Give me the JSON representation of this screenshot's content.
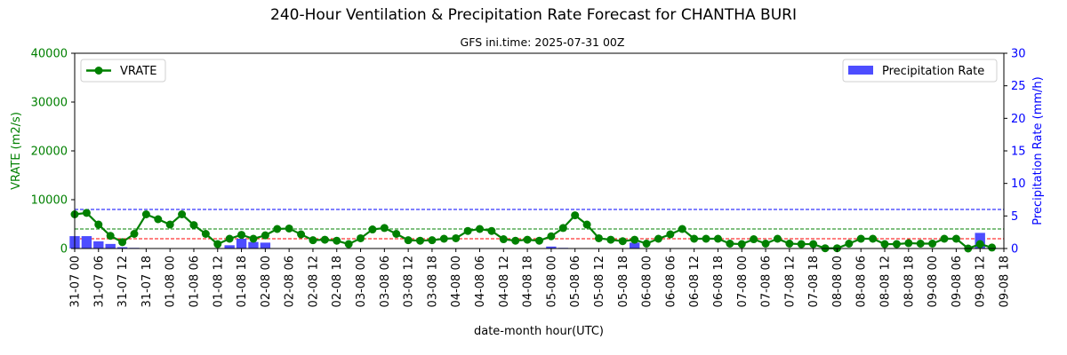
{
  "chart_data": {
    "type": "line",
    "title": "240-Hour Ventilation & Precipitation Rate Forecast for CHANTHA BURI",
    "subtitle": "GFS ini.time: 2025-07-31 00Z",
    "xlabel": "date-month hour(UTC)",
    "ylabel_left": "VRATE (m2/s)",
    "ylabel_right": "Precipitation Rate (mm/h)",
    "ylim_left": [
      0,
      40000
    ],
    "ylim_right": [
      0,
      30
    ],
    "yticks_left": [
      "0",
      "10000",
      "20000",
      "30000",
      "40000"
    ],
    "yticks_right": [
      "0",
      "5",
      "10",
      "15",
      "20",
      "25",
      "30"
    ],
    "grid": false,
    "legend_left": {
      "label": "VRATE",
      "position": "upper left"
    },
    "legend_right": {
      "label": "Precipitation Rate",
      "position": "upper right"
    },
    "reference_lines_left": [
      {
        "value": 8000,
        "color": "#0000ff",
        "style": "dashed"
      },
      {
        "value": 4000,
        "color": "#008000",
        "style": "dashed"
      },
      {
        "value": 2000,
        "color": "#ff0000",
        "style": "dashed"
      }
    ],
    "x_tick_labels": [
      "31-07 00",
      "31-07 06",
      "31-07 12",
      "31-07 18",
      "01-08 00",
      "01-08 06",
      "01-08 12",
      "01-08 18",
      "02-08 00",
      "02-08 06",
      "02-08 12",
      "02-08 18",
      "03-08 00",
      "03-08 06",
      "03-08 12",
      "03-08 18",
      "04-08 00",
      "04-08 06",
      "04-08 12",
      "04-08 18",
      "05-08 00",
      "05-08 06",
      "05-08 12",
      "05-08 18",
      "06-08 00",
      "06-08 06",
      "06-08 12",
      "06-08 18",
      "07-08 00",
      "07-08 06",
      "07-08 12",
      "07-08 18",
      "08-08 00",
      "08-08 06",
      "08-08 12",
      "08-08 18",
      "09-08 00",
      "09-08 06",
      "09-08 12",
      "09-08 18"
    ],
    "series": [
      {
        "name": "VRATE",
        "axis": "left",
        "color": "#008000",
        "values": [
          7000,
          7300,
          4900,
          2600,
          1300,
          3000,
          7000,
          6000,
          4900,
          7000,
          4800,
          3000,
          900,
          2000,
          2800,
          2000,
          2700,
          4000,
          4100,
          2900,
          1700,
          1800,
          1600,
          900,
          2100,
          3900,
          4200,
          3000,
          1700,
          1600,
          1700,
          2000,
          2100,
          3600,
          4000,
          3600,
          1900,
          1600,
          1800,
          1600,
          2500,
          4200,
          6800,
          4900,
          2100,
          1800,
          1500,
          1800,
          1000,
          2000,
          2900,
          4000,
          2000,
          2000,
          2000,
          1000,
          900,
          1900,
          1000,
          2000,
          1000,
          900,
          900,
          50,
          50,
          1000,
          2000,
          2000,
          900,
          900,
          1100,
          1000,
          1000,
          2000,
          2000,
          0,
          900,
          200
        ]
      },
      {
        "name": "Precipitation Rate",
        "axis": "right",
        "color": "#0000ff",
        "values": [
          1.9,
          1.9,
          1.1,
          0.7,
          0.2,
          0.1,
          0,
          0,
          0,
          0,
          0,
          0,
          0,
          0.5,
          1.5,
          1.0,
          0.9,
          0,
          0,
          0,
          0,
          0,
          0,
          0,
          0,
          0,
          0,
          0,
          0,
          0,
          0,
          0,
          0,
          0,
          0,
          0,
          0,
          0,
          0,
          0,
          0.3,
          0.1,
          0,
          0,
          0,
          0,
          0,
          0.9,
          0,
          0,
          0,
          0,
          0,
          0,
          0,
          0,
          0,
          0,
          0,
          0,
          0,
          0,
          0,
          0,
          0,
          0,
          0,
          0,
          0,
          0,
          0,
          0,
          0,
          0,
          0,
          0,
          2.4,
          0.1
        ]
      }
    ]
  }
}
